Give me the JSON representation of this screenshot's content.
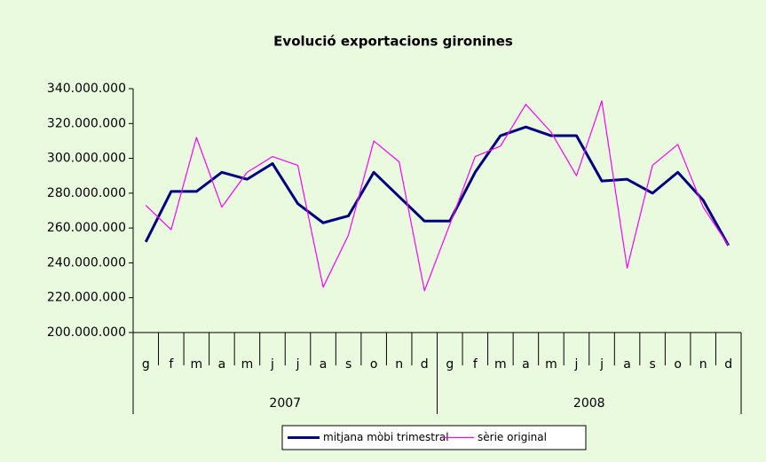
{
  "chart_data": {
    "type": "line",
    "title": "Evolució exportacions gironines",
    "categories": [
      "g",
      "f",
      "m",
      "a",
      "m",
      "j",
      "j",
      "a",
      "s",
      "o",
      "n",
      "d",
      "g",
      "f",
      "m",
      "a",
      "m",
      "j",
      "j",
      "a",
      "s",
      "o",
      "n",
      "d"
    ],
    "category_groups": [
      "2007",
      "2008"
    ],
    "series": [
      {
        "name": "mitjana mòbi trimestral",
        "color": "#000080",
        "width": 3,
        "values": [
          252000000,
          281000000,
          281000000,
          292000000,
          288000000,
          297000000,
          274000000,
          263000000,
          267000000,
          292000000,
          278000000,
          264000000,
          264000000,
          292000000,
          313000000,
          318000000,
          313000000,
          313000000,
          287000000,
          288000000,
          280000000,
          292000000,
          276000000,
          250000000
        ]
      },
      {
        "name": "sèrie original",
        "color": "#ff00ff",
        "width": 1.2,
        "values": [
          273000000,
          259000000,
          312000000,
          272000000,
          292000000,
          301000000,
          296000000,
          226000000,
          256000000,
          310000000,
          298000000,
          224000000,
          262000000,
          301000000,
          307000000,
          331000000,
          315000000,
          290000000,
          333000000,
          237000000,
          296000000,
          308000000,
          272000000,
          250000000
        ]
      }
    ],
    "ylim": [
      200000000,
      340000000
    ],
    "yticks": [
      {
        "value": 200000000,
        "label": "200.000.000"
      },
      {
        "value": 220000000,
        "label": "220.000.000"
      },
      {
        "value": 240000000,
        "label": "240.000.000"
      },
      {
        "value": 260000000,
        "label": "260.000.000"
      },
      {
        "value": 280000000,
        "label": "280.000.000"
      },
      {
        "value": 300000000,
        "label": "300.000.000"
      },
      {
        "value": 320000000,
        "label": "320.000.000"
      },
      {
        "value": 340000000,
        "label": "340.000.000"
      }
    ],
    "grid": false,
    "legend": "bottom"
  }
}
